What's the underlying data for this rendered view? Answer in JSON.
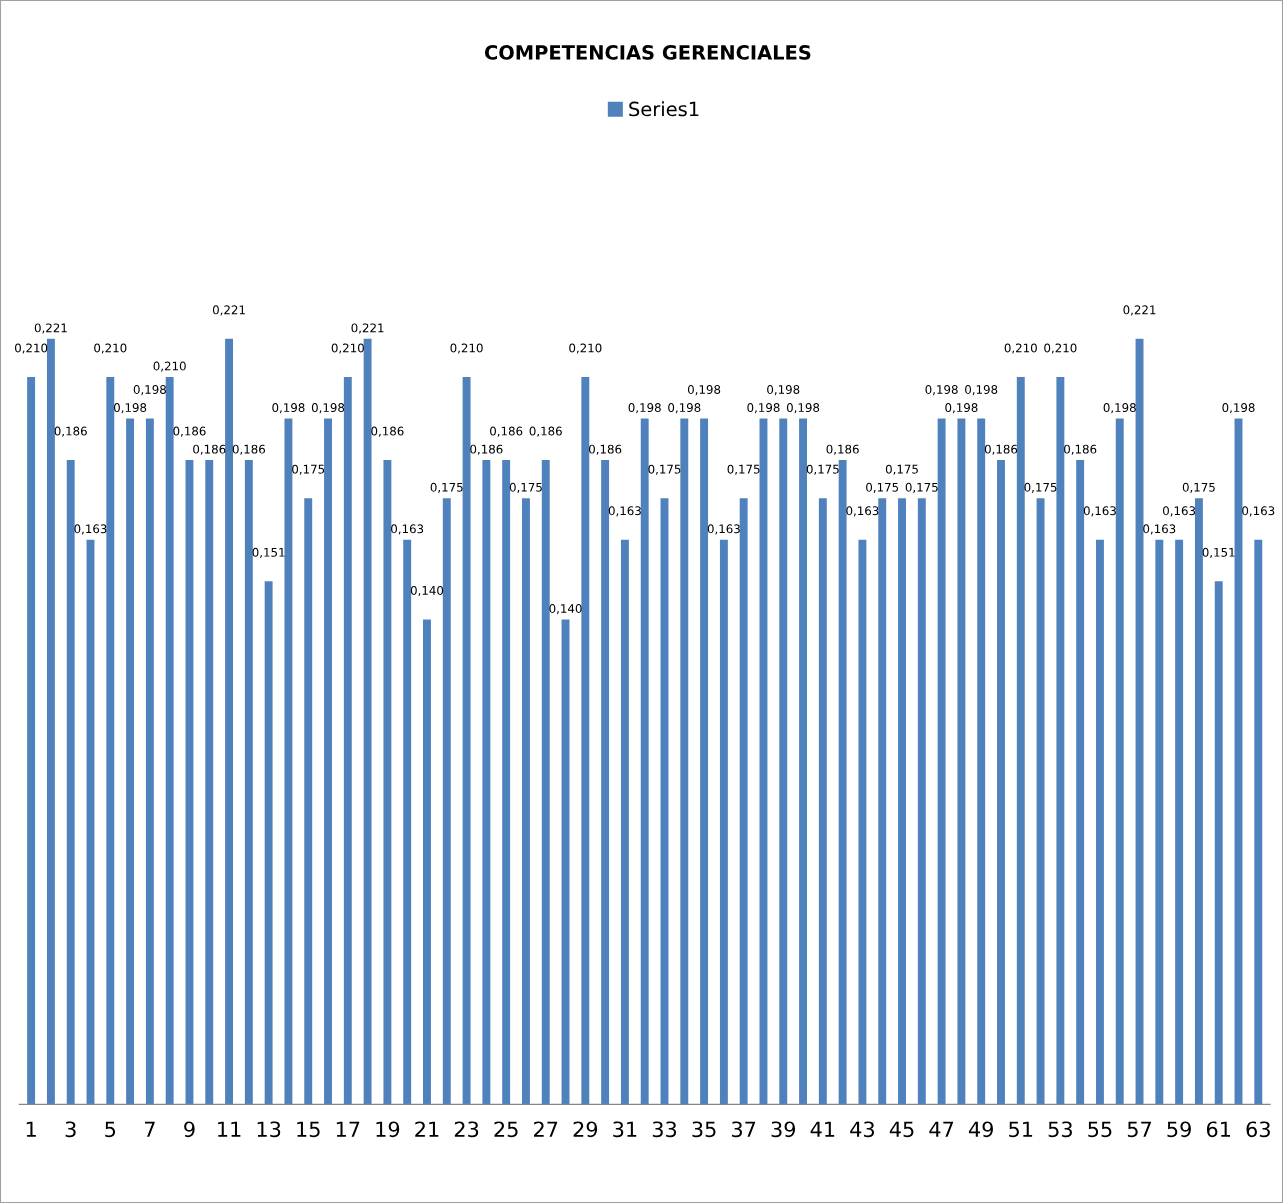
{
  "chart_data": {
    "type": "bar",
    "title": "COMPETENCIAS GERENCIALES",
    "categories": [
      "1",
      null,
      "3",
      null,
      "5",
      null,
      "7",
      null,
      "9",
      null,
      "11",
      null,
      "13",
      null,
      "15",
      null,
      "17",
      null,
      "19",
      null,
      "21",
      null,
      "23",
      null,
      "25",
      null,
      "27",
      null,
      "29",
      null,
      "31",
      null,
      "33",
      null,
      "35",
      null,
      "37",
      null,
      "39",
      null,
      "41",
      null,
      "43",
      null,
      "45",
      null,
      "47",
      null,
      "49",
      null,
      "51",
      null,
      "53",
      null,
      "55",
      null,
      "57",
      null,
      "59",
      null,
      "61",
      null,
      "63"
    ],
    "series": [
      {
        "name": "Series1",
        "color": "#4f81bd",
        "values": [
          0.21,
          0.221,
          0.186,
          0.163,
          0.21,
          0.198,
          0.198,
          0.21,
          0.186,
          0.186,
          0.221,
          0.186,
          0.151,
          0.198,
          0.175,
          0.198,
          0.21,
          0.221,
          0.186,
          0.163,
          0.14,
          0.175,
          0.21,
          0.186,
          0.186,
          0.175,
          0.186,
          0.14,
          0.21,
          0.186,
          0.163,
          0.198,
          0.175,
          0.198,
          0.198,
          0.163,
          0.175,
          0.198,
          0.198,
          0.198,
          0.175,
          0.186,
          0.163,
          0.175,
          0.175,
          0.175,
          0.198,
          0.198,
          0.198,
          0.186,
          0.21,
          0.175,
          0.21,
          0.186,
          0.163,
          0.198,
          0.221,
          0.163,
          0.163,
          0.175,
          0.151,
          0.198,
          0.163
        ],
        "value_labels": [
          "0,210",
          "0,221",
          "0,186",
          "0,163",
          "0,210",
          "0,198",
          "0,198",
          "0,210",
          "0,186",
          "0,186",
          "0,221",
          "0,186",
          "0,151",
          "0,198",
          "0,175",
          "0,198",
          "0,210",
          "0,221",
          "0,186",
          "0,163",
          "0,140",
          "0,175",
          "0,210",
          "0,186",
          "0,186",
          "0,175",
          "0,186",
          "0,140",
          "0,210",
          "0,186",
          "0,163",
          "0,198",
          "0,175",
          "0,198",
          "0,198",
          "0,163",
          "0,175",
          "0,198",
          "0,198",
          "0,198",
          "0,175",
          "0,186",
          "0,163",
          "0,175",
          "0,175",
          "0,175",
          "0,198",
          "0,198",
          "0,198",
          "0,186",
          "0,210",
          "0,175",
          "0,210",
          "0,186",
          "0,163",
          "0,198",
          "0,221",
          "0,163",
          "0,163",
          "0,175",
          "0,151",
          "0,198",
          "0,163"
        ]
      }
    ],
    "legend": "top",
    "grid": false
  }
}
